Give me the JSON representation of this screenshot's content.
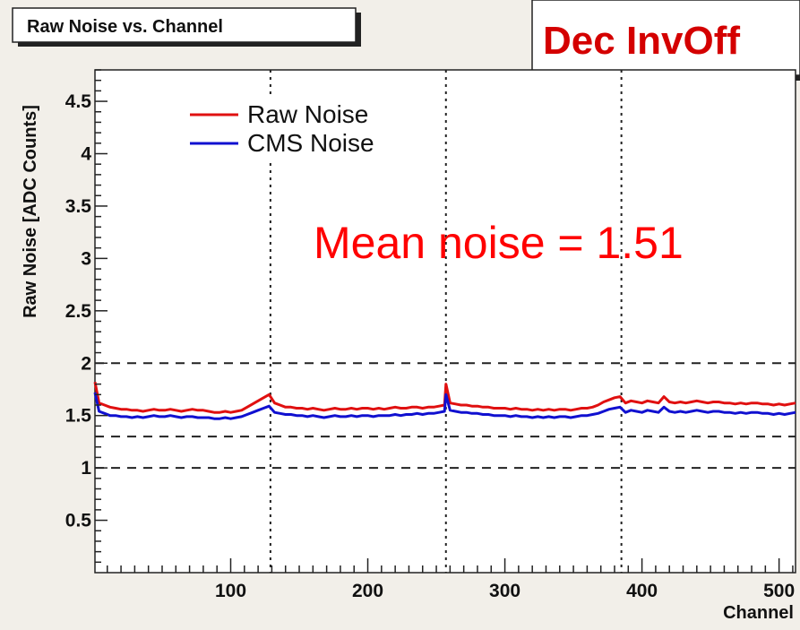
{
  "chart_data": {
    "type": "line",
    "title": "Raw Noise vs. Channel",
    "tag": "Dec InvOff",
    "xlabel": "Channel",
    "ylabel": "Raw Noise [ADC Counts]",
    "xlim": [
      1,
      512
    ],
    "ylim": [
      0,
      4.8
    ],
    "xticks": [
      100,
      200,
      300,
      400,
      500
    ],
    "xtick_labels": [
      "100",
      "200",
      "300",
      "400",
      "500"
    ],
    "yticks": [
      0.5,
      1,
      1.5,
      2,
      2.5,
      3,
      3.5,
      4,
      4.5
    ],
    "ytick_labels": [
      "0.5",
      "1",
      "1.5",
      "2",
      "2.5",
      "3",
      "3.5",
      "4",
      "4.5"
    ],
    "reference_lines_y": [
      2.0,
      1.3,
      1.0
    ],
    "reference_lines_x": [
      129,
      257,
      385
    ],
    "annotation": "Mean noise = 1.51",
    "legend_position": "top-left",
    "series": [
      {
        "name": "Raw Noise",
        "color": "#e01010",
        "x": [
          1,
          4,
          8,
          12,
          16,
          20,
          24,
          28,
          32,
          36,
          40,
          44,
          48,
          52,
          56,
          60,
          64,
          68,
          72,
          76,
          80,
          84,
          88,
          92,
          96,
          100,
          104,
          108,
          112,
          116,
          120,
          124,
          128,
          132,
          136,
          140,
          144,
          148,
          152,
          156,
          160,
          164,
          168,
          172,
          176,
          180,
          184,
          188,
          192,
          196,
          200,
          204,
          208,
          212,
          216,
          220,
          224,
          228,
          232,
          236,
          240,
          244,
          248,
          252,
          256,
          257,
          260,
          264,
          268,
          272,
          276,
          280,
          284,
          288,
          292,
          296,
          300,
          304,
          308,
          312,
          316,
          320,
          324,
          328,
          332,
          336,
          340,
          344,
          348,
          352,
          356,
          360,
          364,
          368,
          372,
          376,
          380,
          384,
          388,
          392,
          396,
          400,
          404,
          408,
          412,
          416,
          420,
          424,
          428,
          432,
          436,
          440,
          444,
          448,
          452,
          456,
          460,
          464,
          468,
          472,
          476,
          480,
          484,
          488,
          492,
          496,
          500,
          504,
          508,
          512
        ],
        "values": [
          1.82,
          1.62,
          1.6,
          1.58,
          1.57,
          1.56,
          1.56,
          1.55,
          1.55,
          1.54,
          1.55,
          1.56,
          1.55,
          1.55,
          1.56,
          1.55,
          1.54,
          1.55,
          1.56,
          1.55,
          1.55,
          1.54,
          1.53,
          1.53,
          1.54,
          1.53,
          1.54,
          1.55,
          1.58,
          1.61,
          1.64,
          1.67,
          1.7,
          1.62,
          1.6,
          1.58,
          1.58,
          1.57,
          1.57,
          1.56,
          1.57,
          1.56,
          1.55,
          1.56,
          1.57,
          1.56,
          1.56,
          1.57,
          1.56,
          1.57,
          1.57,
          1.56,
          1.57,
          1.56,
          1.57,
          1.58,
          1.57,
          1.57,
          1.58,
          1.58,
          1.57,
          1.58,
          1.58,
          1.59,
          1.6,
          1.8,
          1.62,
          1.61,
          1.6,
          1.6,
          1.59,
          1.59,
          1.58,
          1.58,
          1.57,
          1.57,
          1.57,
          1.56,
          1.57,
          1.56,
          1.56,
          1.55,
          1.56,
          1.55,
          1.56,
          1.55,
          1.56,
          1.56,
          1.55,
          1.56,
          1.57,
          1.57,
          1.58,
          1.6,
          1.63,
          1.65,
          1.67,
          1.68,
          1.62,
          1.64,
          1.63,
          1.62,
          1.64,
          1.63,
          1.62,
          1.68,
          1.63,
          1.62,
          1.63,
          1.62,
          1.63,
          1.64,
          1.63,
          1.62,
          1.63,
          1.63,
          1.62,
          1.62,
          1.61,
          1.62,
          1.61,
          1.62,
          1.62,
          1.61,
          1.61,
          1.6,
          1.61,
          1.6,
          1.61,
          1.62
        ]
      },
      {
        "name": "CMS Noise",
        "color": "#1010d0",
        "x": [
          1,
          4,
          8,
          12,
          16,
          20,
          24,
          28,
          32,
          36,
          40,
          44,
          48,
          52,
          56,
          60,
          64,
          68,
          72,
          76,
          80,
          84,
          88,
          92,
          96,
          100,
          104,
          108,
          112,
          116,
          120,
          124,
          128,
          132,
          136,
          140,
          144,
          148,
          152,
          156,
          160,
          164,
          168,
          172,
          176,
          180,
          184,
          188,
          192,
          196,
          200,
          204,
          208,
          212,
          216,
          220,
          224,
          228,
          232,
          236,
          240,
          244,
          248,
          252,
          256,
          257,
          260,
          264,
          268,
          272,
          276,
          280,
          284,
          288,
          292,
          296,
          300,
          304,
          308,
          312,
          316,
          320,
          324,
          328,
          332,
          336,
          340,
          344,
          348,
          352,
          356,
          360,
          364,
          368,
          372,
          376,
          380,
          384,
          388,
          392,
          396,
          400,
          404,
          408,
          412,
          416,
          420,
          424,
          428,
          432,
          436,
          440,
          444,
          448,
          452,
          456,
          460,
          464,
          468,
          472,
          476,
          480,
          484,
          488,
          492,
          496,
          500,
          504,
          508,
          512
        ],
        "values": [
          1.72,
          1.54,
          1.52,
          1.5,
          1.5,
          1.49,
          1.49,
          1.48,
          1.49,
          1.48,
          1.49,
          1.5,
          1.49,
          1.49,
          1.5,
          1.49,
          1.48,
          1.49,
          1.49,
          1.48,
          1.48,
          1.48,
          1.47,
          1.47,
          1.48,
          1.47,
          1.48,
          1.49,
          1.51,
          1.53,
          1.55,
          1.57,
          1.59,
          1.53,
          1.52,
          1.51,
          1.51,
          1.5,
          1.5,
          1.49,
          1.5,
          1.49,
          1.48,
          1.49,
          1.5,
          1.49,
          1.49,
          1.5,
          1.49,
          1.5,
          1.5,
          1.49,
          1.5,
          1.5,
          1.5,
          1.51,
          1.5,
          1.51,
          1.51,
          1.52,
          1.51,
          1.52,
          1.52,
          1.53,
          1.54,
          1.7,
          1.55,
          1.54,
          1.53,
          1.53,
          1.52,
          1.52,
          1.51,
          1.51,
          1.5,
          1.5,
          1.5,
          1.49,
          1.5,
          1.49,
          1.49,
          1.48,
          1.49,
          1.48,
          1.49,
          1.48,
          1.49,
          1.49,
          1.48,
          1.49,
          1.5,
          1.5,
          1.51,
          1.52,
          1.54,
          1.56,
          1.57,
          1.58,
          1.53,
          1.55,
          1.54,
          1.53,
          1.55,
          1.54,
          1.53,
          1.58,
          1.54,
          1.53,
          1.54,
          1.53,
          1.54,
          1.55,
          1.54,
          1.53,
          1.54,
          1.54,
          1.53,
          1.53,
          1.52,
          1.53,
          1.52,
          1.53,
          1.53,
          1.52,
          1.52,
          1.51,
          1.52,
          1.51,
          1.52,
          1.53
        ]
      }
    ]
  }
}
